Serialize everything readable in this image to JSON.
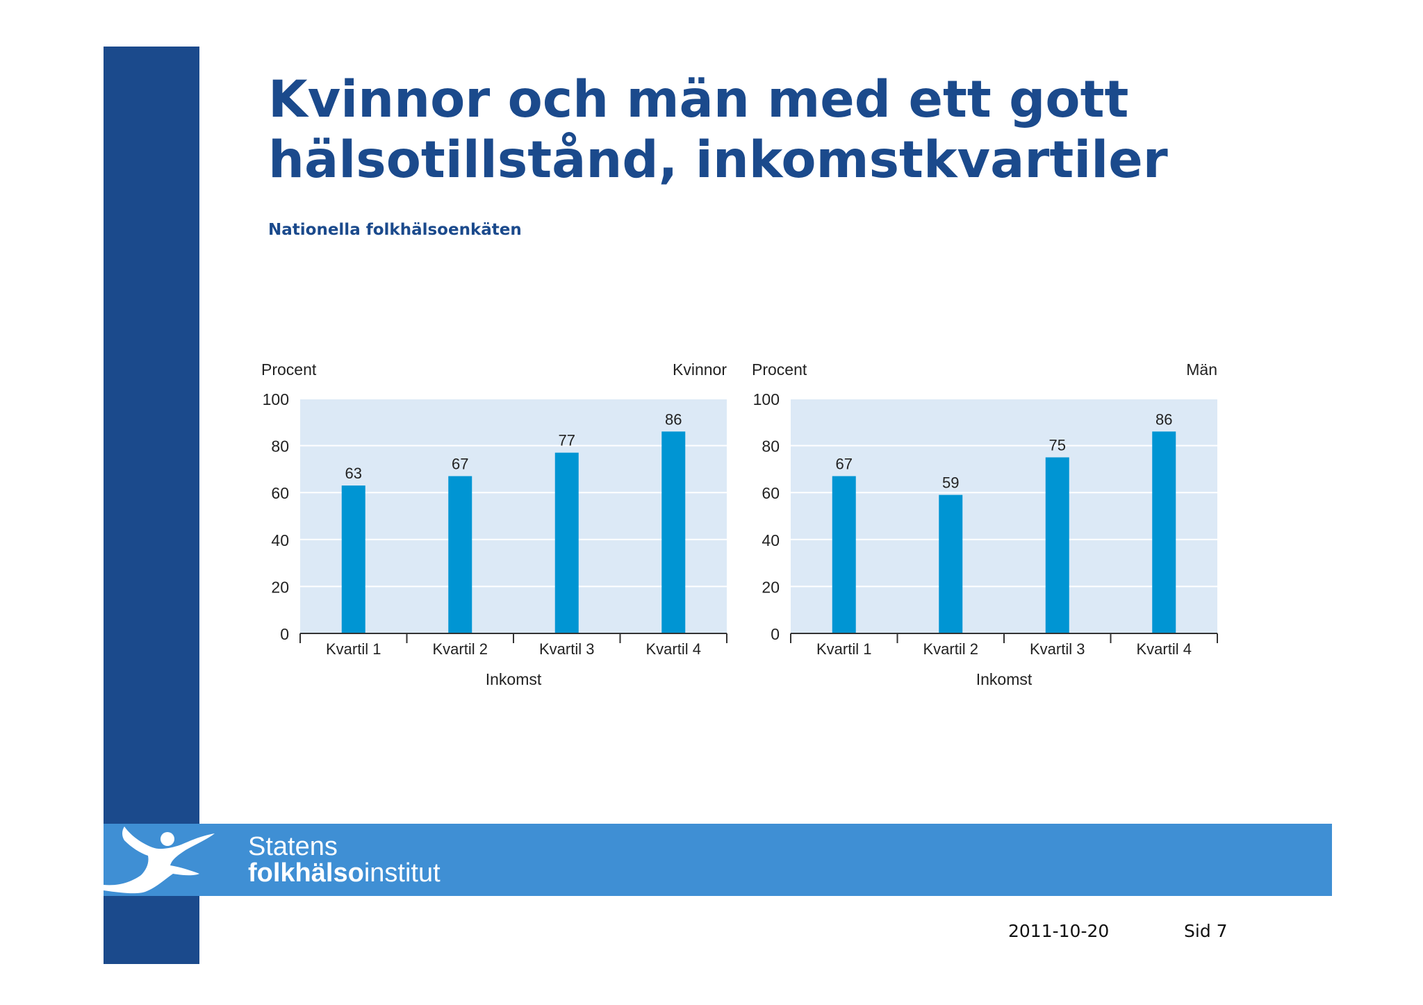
{
  "slide": {
    "title_line1": "Kvinnor och män med ett gott",
    "title_line2": "hälsotillstånd, inkomstkvartiler",
    "subtitle": "Nationella folkhälsoenkäten"
  },
  "colors": {
    "brand_dark": "#1b4a8c",
    "brand_light": "#3f8fd4",
    "plot_background": "#dce9f6",
    "bar": "#0095d3"
  },
  "chart_data": [
    {
      "type": "bar",
      "ylabel": "Procent",
      "panel_label": "Kvinnor",
      "xlabel": "Inkomst",
      "categories": [
        "Kvartil 1",
        "Kvartil 2",
        "Kvartil 3",
        "Kvartil 4"
      ],
      "values": [
        63,
        67,
        77,
        86
      ],
      "ylim": [
        0,
        100
      ],
      "yticks": [
        0,
        20,
        40,
        60,
        80,
        100
      ],
      "grid": true
    },
    {
      "type": "bar",
      "ylabel": "Procent",
      "panel_label": "Män",
      "xlabel": "Inkomst",
      "categories": [
        "Kvartil 1",
        "Kvartil 2",
        "Kvartil 3",
        "Kvartil 4"
      ],
      "values": [
        67,
        59,
        75,
        86
      ],
      "ylim": [
        0,
        100
      ],
      "yticks": [
        0,
        20,
        40,
        60,
        80,
        100
      ],
      "grid": true
    }
  ],
  "logo": {
    "line1": "Statens",
    "line2_bold": "folkhälso",
    "line2_regular": "institut"
  },
  "footer": {
    "date": "2011-10-20",
    "page": "Sid 7"
  }
}
